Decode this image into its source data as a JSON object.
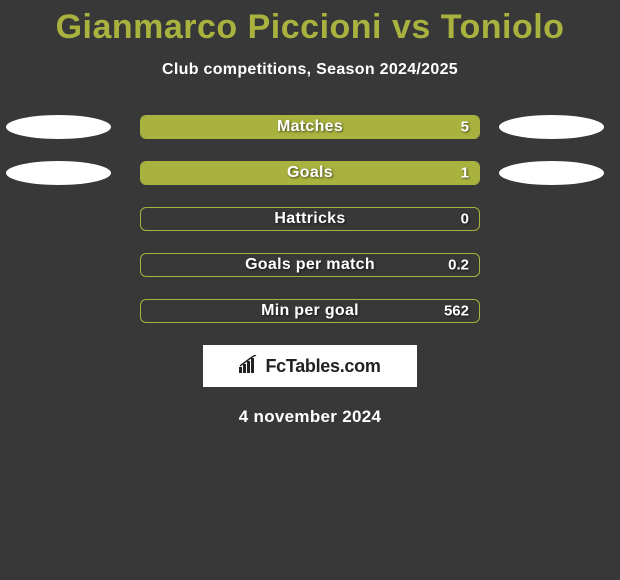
{
  "title": "Gianmarco Piccioni vs Toniolo",
  "subtitle": "Club competitions, Season 2024/2025",
  "date": "4 november 2024",
  "logo_text": "FcTables.com",
  "colors": {
    "background": "#383838",
    "accent": "#a9b23f",
    "text": "#ffffff",
    "ellipse": "#ffffff"
  },
  "side_ellipse_rows": [
    0,
    1
  ],
  "stats": [
    {
      "label": "Matches",
      "value": "5",
      "fill_pct": 100
    },
    {
      "label": "Goals",
      "value": "1",
      "fill_pct": 100
    },
    {
      "label": "Hattricks",
      "value": "0",
      "fill_pct": 0
    },
    {
      "label": "Goals per match",
      "value": "0.2",
      "fill_pct": 0
    },
    {
      "label": "Min per goal",
      "value": "562",
      "fill_pct": 0
    }
  ]
}
